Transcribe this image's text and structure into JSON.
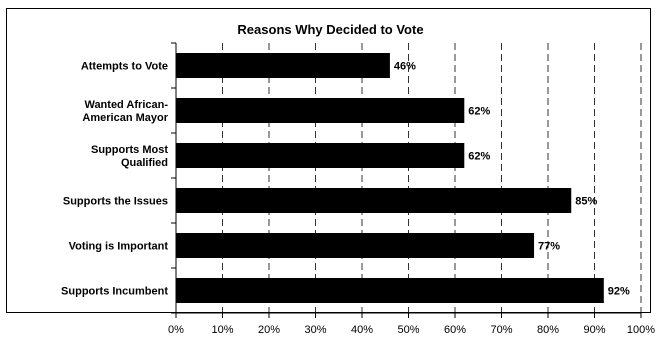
{
  "chart_data": {
    "type": "bar",
    "orientation": "horizontal",
    "title": "Reasons Why Decided to Vote",
    "categories": [
      "Attempts to Vote",
      "Wanted African-American Mayor",
      "Supports Most Qualified",
      "Supports the Issues",
      "Voting is Important",
      "Supports Incumbent"
    ],
    "category_lines": [
      [
        "Attempts to Vote"
      ],
      [
        "Wanted African-",
        "American Mayor"
      ],
      [
        "Supports Most",
        "Qualified"
      ],
      [
        "Supports the Issues"
      ],
      [
        "Voting is Important"
      ],
      [
        "Supports Incumbent"
      ]
    ],
    "values": [
      46,
      62,
      62,
      85,
      77,
      92
    ],
    "value_labels": [
      "46%",
      "62%",
      "62%",
      "85%",
      "77%",
      "92%"
    ],
    "xlim": [
      0,
      100
    ],
    "x_ticks": [
      0,
      10,
      20,
      30,
      40,
      50,
      60,
      70,
      80,
      90,
      100
    ],
    "x_tick_labels": [
      "0%",
      "10%",
      "20%",
      "30%",
      "40%",
      "50%",
      "60%",
      "70%",
      "80%",
      "90%",
      "100%"
    ],
    "grid": "vertical dashed",
    "bar_color": "#000000"
  }
}
